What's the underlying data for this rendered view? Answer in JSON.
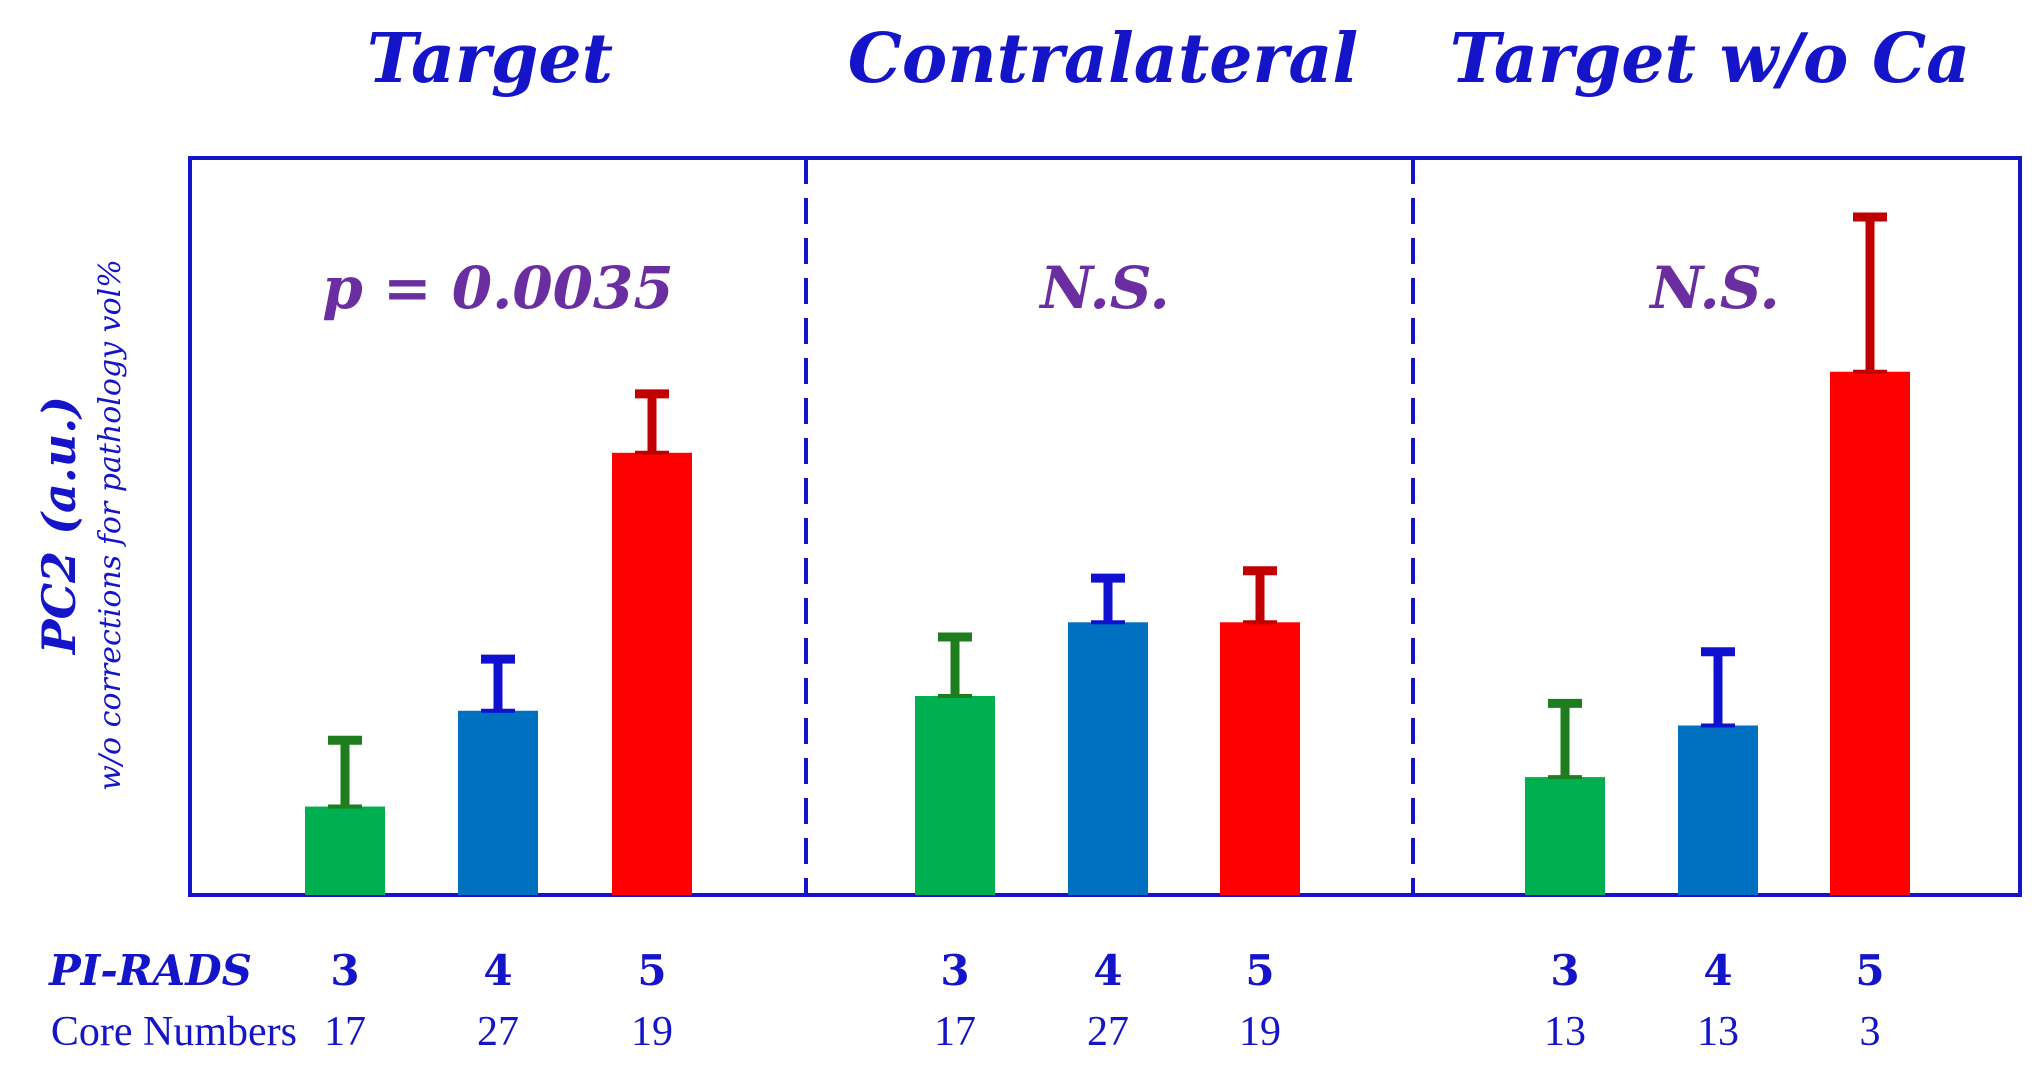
{
  "chart_data": {
    "type": "bar",
    "ylabel": "PC2 (a.u.)",
    "ylabel_sub": "w/o corrections for pathology vol%",
    "ylim": [
      0,
      100
    ],
    "row_labels": {
      "pirads": "PI-RADS",
      "cores": "Core Numbers"
    },
    "colors": {
      "3": "#00b050",
      "4": "#0070c0",
      "5": "#ff0000",
      "axis": "#1414c8",
      "sig": "#6a2ea0"
    },
    "error_colors": {
      "3": "#1e7e1e",
      "4": "#1010d0",
      "5": "#c00000"
    },
    "groups": [
      {
        "title": "Target",
        "significance": "p = 0.0035",
        "bars": [
          {
            "pirads": "3",
            "cores": "17",
            "value": 12,
            "error": 9
          },
          {
            "pirads": "4",
            "cores": "27",
            "value": 25,
            "error": 7
          },
          {
            "pirads": "5",
            "cores": "19",
            "value": 60,
            "error": 8
          }
        ]
      },
      {
        "title": "Contralateral",
        "significance": "N.S.",
        "bars": [
          {
            "pirads": "3",
            "cores": "17",
            "value": 27,
            "error": 8
          },
          {
            "pirads": "4",
            "cores": "27",
            "value": 37,
            "error": 6
          },
          {
            "pirads": "5",
            "cores": "19",
            "value": 37,
            "error": 7
          }
        ]
      },
      {
        "title": "Target w/o Ca",
        "significance": "N.S.",
        "bars": [
          {
            "pirads": "3",
            "cores": "13",
            "value": 16,
            "error": 10
          },
          {
            "pirads": "4",
            "cores": "13",
            "value": 23,
            "error": 10
          },
          {
            "pirads": "5",
            "cores": "3",
            "value": 71,
            "error": 21
          }
        ]
      }
    ]
  }
}
